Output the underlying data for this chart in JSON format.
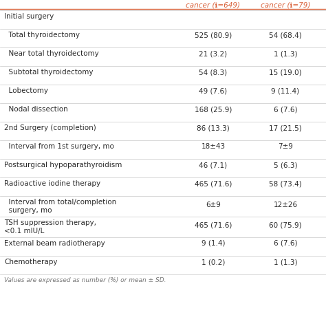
{
  "header_col2": "cancer (ℹ=649)",
  "header_col3": "cancer (ℹ=79)",
  "header_color": "#D9623B",
  "rows": [
    {
      "label": "Initial surgery",
      "val1": "",
      "val2": "",
      "indent": 0,
      "multiline": false
    },
    {
      "label": "  Total thyroidectomy",
      "val1": "525 (80.9)",
      "val2": "54 (68.4)",
      "indent": 1,
      "multiline": false
    },
    {
      "label": "  Near total thyroidectomy",
      "val1": "21 (3.2)",
      "val2": "1 (1.3)",
      "indent": 1,
      "multiline": false
    },
    {
      "label": "  Subtotal thyroidectomy",
      "val1": "54 (8.3)",
      "val2": "15 (19.0)",
      "indent": 1,
      "multiline": false
    },
    {
      "label": "  Lobectomy",
      "val1": "49 (7.6)",
      "val2": "9 (11.4)",
      "indent": 1,
      "multiline": false
    },
    {
      "label": "  Nodal dissection",
      "val1": "168 (25.9)",
      "val2": "6 (7.6)",
      "indent": 1,
      "multiline": false
    },
    {
      "label": "2nd Surgery (completion)",
      "val1": "86 (13.3)",
      "val2": "17 (21.5)",
      "indent": 0,
      "multiline": false
    },
    {
      "label": "  Interval from 1st surgery, mo",
      "val1": "18±43",
      "val2": "7±9",
      "indent": 1,
      "multiline": false
    },
    {
      "label": "Postsurgical hypoparathyroidism",
      "val1": "46 (7.1)",
      "val2": "5 (6.3)",
      "indent": 0,
      "multiline": false
    },
    {
      "label": "Radioactive iodine therapy",
      "val1": "465 (71.6)",
      "val2": "58 (73.4)",
      "indent": 0,
      "multiline": false
    },
    {
      "label": "  Interval from total/completion\n  surgery, mo",
      "val1": "6±9",
      "val2": "12±26",
      "indent": 1,
      "multiline": true
    },
    {
      "label": "TSH suppression therapy,\n<0.1 mIU/L",
      "val1": "465 (71.6)",
      "val2": "60 (75.9)",
      "indent": 0,
      "multiline": true
    },
    {
      "label": "External beam radiotherapy",
      "val1": "9 (1.4)",
      "val2": "6 (7.6)",
      "indent": 0,
      "multiline": false
    },
    {
      "label": "Chemotherapy",
      "val1": "1 (0.2)",
      "val2": "1 (1.3)",
      "indent": 0,
      "multiline": false
    }
  ],
  "footer": "Values are expressed as number (%) or mean ± SD.",
  "bg_color": "#FFFFFF",
  "text_color": "#2B2B2B",
  "line_color": "#C8C8C8"
}
